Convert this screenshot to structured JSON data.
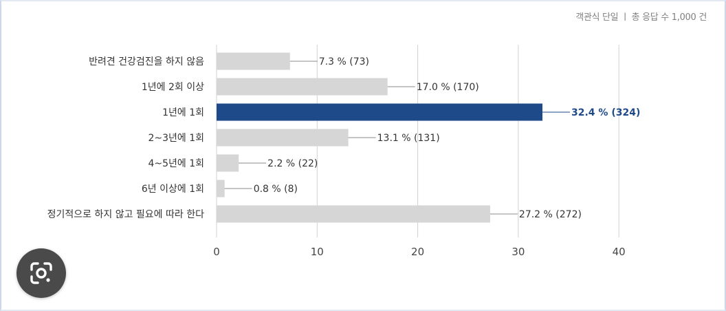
{
  "meta_text": "객관식 단일 ㅣ 총 응답 수 1,000 건",
  "chart_data": {
    "type": "bar",
    "orientation": "horizontal",
    "categories": [
      "반려견 건강검진을 하지 않음",
      "1년에 2회 이상",
      "1년에 1회",
      "2~3년에 1회",
      "4~5년에 1회",
      "6년 이상에 1회",
      "정기적으로 하지 않고 필요에 따라 한다"
    ],
    "values": [
      7.3,
      17.0,
      32.4,
      13.1,
      2.2,
      0.8,
      27.2
    ],
    "data_labels": [
      "7.3 % (73)",
      "17.0 % (170)",
      "32.4 % (324)",
      "13.1 % (131)",
      "2.2 % (22)",
      "0.8 % (8)",
      "27.2 % (272)"
    ],
    "highlight_index": 2,
    "xlim": [
      0,
      40
    ],
    "xticks": [
      0,
      10,
      20,
      30,
      40
    ],
    "grid": true,
    "colors": {
      "bar": "#d6d6d6",
      "highlight": "#1e4a8a",
      "grid": "#d0d0d0",
      "label": "#333333",
      "highlight_label": "#1e4a8a"
    }
  },
  "icons": {
    "lens": "google-lens-icon"
  }
}
